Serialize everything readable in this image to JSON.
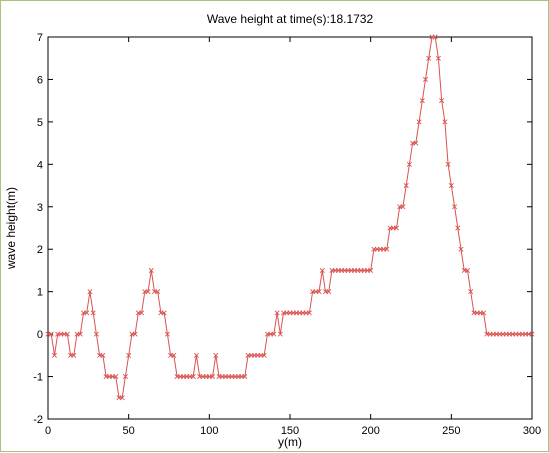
{
  "chart_data": {
    "type": "line",
    "title": "Wave height at time(s):18.1732",
    "xlabel": "y(m)",
    "ylabel": "wave height(m)",
    "xlim": [
      0,
      300
    ],
    "ylim": [
      -2,
      7
    ],
    "xticks": [
      0,
      50,
      100,
      150,
      200,
      250,
      300
    ],
    "yticks": [
      -2,
      -1,
      0,
      1,
      2,
      3,
      4,
      5,
      6,
      7
    ],
    "grid": false,
    "line_color": "#d9534f",
    "marker": "x",
    "series": [
      {
        "x": [
          0,
          2,
          4,
          6,
          8,
          10,
          12,
          14,
          16,
          18,
          20,
          22,
          24,
          26,
          28,
          30,
          32,
          34,
          36,
          38,
          40,
          42,
          44,
          46,
          48,
          50,
          52,
          54,
          56,
          58,
          60,
          62,
          64,
          66,
          68,
          70,
          72,
          74,
          76,
          78,
          80,
          82,
          84,
          86,
          88,
          90,
          92,
          94,
          96,
          98,
          100,
          102,
          104,
          106,
          108,
          110,
          112,
          114,
          116,
          118,
          120,
          122,
          124,
          126,
          128,
          130,
          132,
          134,
          136,
          138,
          140,
          142,
          144,
          146,
          148,
          150,
          152,
          154,
          156,
          158,
          160,
          162,
          164,
          166,
          168,
          170,
          172,
          174,
          176,
          178,
          180,
          182,
          184,
          186,
          188,
          190,
          192,
          194,
          196,
          198,
          200,
          202,
          204,
          206,
          208,
          210,
          212,
          214,
          216,
          218,
          220,
          222,
          224,
          226,
          228,
          230,
          232,
          234,
          236,
          238,
          240,
          242,
          244,
          246,
          248,
          250,
          252,
          254,
          256,
          258,
          260,
          262,
          264,
          266,
          268,
          270,
          272,
          274,
          276,
          278,
          280,
          282,
          284,
          286,
          288,
          290,
          292,
          294,
          296,
          298,
          300
        ],
        "y": [
          0,
          0,
          -0.5,
          0,
          0,
          0,
          0,
          -0.5,
          -0.5,
          0,
          0,
          0.5,
          0.5,
          1,
          0.5,
          0,
          -0.5,
          -0.5,
          -1,
          -1,
          -1,
          -1,
          -1.5,
          -1.5,
          -1,
          -0.5,
          0,
          0,
          0.5,
          0.5,
          1,
          1,
          1.5,
          1,
          1,
          0.5,
          0.5,
          0,
          -0.5,
          -0.5,
          -1,
          -1,
          -1,
          -1,
          -1,
          -1,
          -0.5,
          -1,
          -1,
          -1,
          -1,
          -1,
          -0.5,
          -1,
          -1,
          -1,
          -1,
          -1,
          -1,
          -1,
          -1,
          -1,
          -0.5,
          -0.5,
          -0.5,
          -0.5,
          -0.5,
          -0.5,
          0,
          0,
          0,
          0.5,
          0,
          0.5,
          0.5,
          0.5,
          0.5,
          0.5,
          0.5,
          0.5,
          0.5,
          0.5,
          1,
          1,
          1,
          1.5,
          1,
          1,
          1.5,
          1.5,
          1.5,
          1.5,
          1.5,
          1.5,
          1.5,
          1.5,
          1.5,
          1.5,
          1.5,
          1.5,
          1.5,
          2,
          2,
          2,
          2,
          2,
          2.5,
          2.5,
          2.5,
          3,
          3,
          3.5,
          4,
          4.5,
          4.5,
          5,
          5.5,
          6,
          6.5,
          7,
          7,
          6.5,
          5.5,
          5,
          4,
          3.5,
          3,
          2.5,
          2,
          1.5,
          1.5,
          1,
          0.5,
          0.5,
          0.5,
          0.5,
          0,
          0,
          0,
          0,
          0,
          0,
          0,
          0,
          0,
          0,
          0,
          0,
          0,
          0,
          0
        ]
      }
    ]
  }
}
